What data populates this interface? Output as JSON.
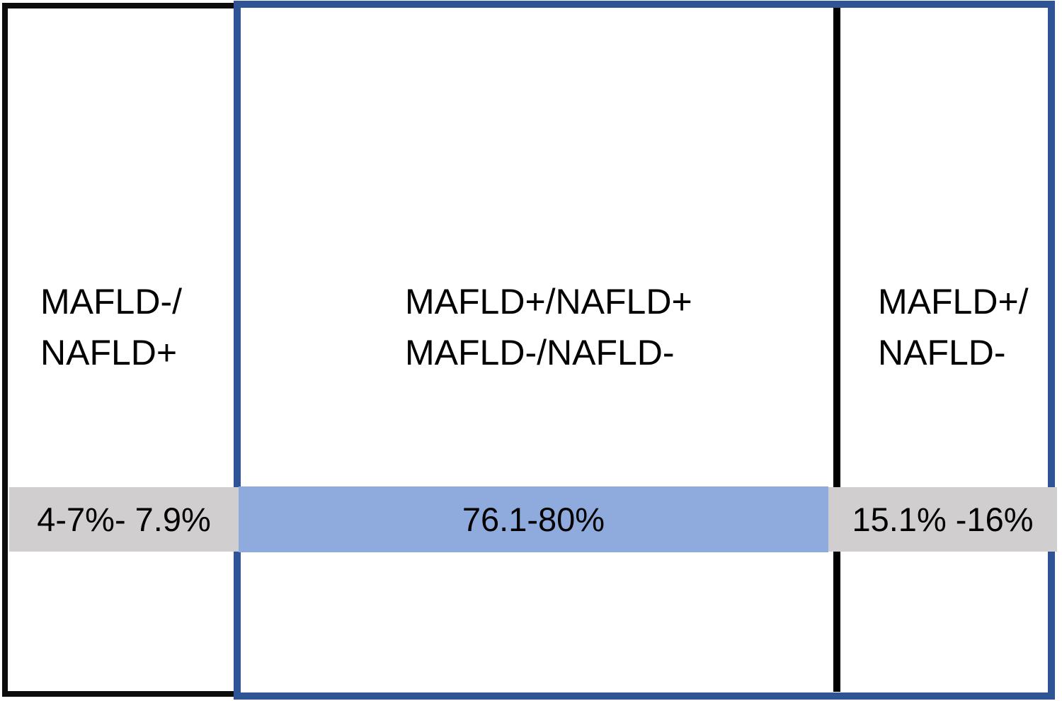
{
  "figure": {
    "description": "Concordance diagram of MAFLD and NAFLD diagnostic criteria with percentage ranges",
    "panels": [
      {
        "id": "left",
        "label_line1": "MAFLD-/",
        "label_line2": "NAFLD+",
        "value": "4-7%- 7.9%",
        "band_color": "#d0cece"
      },
      {
        "id": "middle",
        "label_line1": "MAFLD+/NAFLD+",
        "label_line2": "MAFLD-/NAFLD-",
        "value": "76.1-80%",
        "band_color": "#8faadc"
      },
      {
        "id": "right",
        "label_line1": "MAFLD+/",
        "label_line2": "NAFLD-",
        "value": "15.1% -16%",
        "band_color": "#d0cece"
      }
    ],
    "colors": {
      "blue_border": "#2f5496",
      "light_blue_band": "#8faadc",
      "gray_band": "#d0cece",
      "black_border": "#000000",
      "background": "#ffffff"
    }
  }
}
